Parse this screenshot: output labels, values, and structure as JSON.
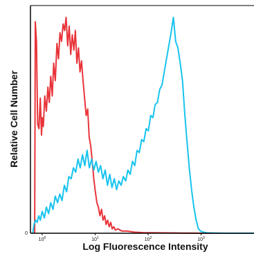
{
  "chart_data": {
    "type": "line",
    "title": "",
    "xlabel": "Log Fluorescence Intensity",
    "ylabel": "Relative Cell Number",
    "x_scale": "log",
    "xlim": [
      0.6,
      10000
    ],
    "ylim": [
      0,
      100
    ],
    "grid": false,
    "x_ticks": [
      {
        "value": 1,
        "base": "10",
        "exp": "0"
      },
      {
        "value": 10,
        "base": "10",
        "exp": "1"
      },
      {
        "value": 100,
        "base": "10",
        "exp": "2"
      },
      {
        "value": 1000,
        "base": "10",
        "exp": "3"
      }
    ],
    "y_ticks": [
      {
        "value": 0,
        "label": "0"
      }
    ],
    "series": [
      {
        "color": "#e8343a",
        "x": [
          0.72,
          0.74,
          0.78,
          0.82,
          0.87,
          0.92,
          0.97,
          1.0,
          1.05,
          1.12,
          1.2,
          1.28,
          1.36,
          1.45,
          1.55,
          1.65,
          1.77,
          1.9,
          2.03,
          2.17,
          2.32,
          2.48,
          2.65,
          2.83,
          3.03,
          3.24,
          3.46,
          3.7,
          3.96,
          4.23,
          4.52,
          4.84,
          5.17,
          5.53,
          5.91,
          6.32,
          6.76,
          7.22,
          7.72,
          8.25,
          8.82,
          9.43,
          10.1,
          10.8,
          11.5,
          12.3,
          13.2,
          14.1,
          15.1,
          16.1,
          17.2,
          18.4,
          19.7,
          21.0,
          22.5,
          24.0,
          27.0,
          32.0,
          40.0,
          55.0,
          80.0,
          150.0,
          400.0,
          1200.0,
          4000.0,
          10000.0
        ],
        "y": [
          0,
          97,
          88,
          50,
          48,
          62,
          45,
          53,
          49,
          63,
          56,
          67,
          60,
          72,
          63,
          78,
          70,
          87,
          80,
          92,
          88,
          96,
          93,
          99,
          86,
          95,
          82,
          91,
          84,
          93,
          78,
          85,
          74,
          79,
          70,
          62,
          54,
          57,
          44,
          40,
          33,
          25,
          19,
          14,
          12,
          8,
          11,
          6,
          8,
          4,
          6,
          3,
          5,
          2,
          3,
          1.5,
          2,
          1,
          1,
          0.5,
          0.3,
          0.2,
          0.1,
          0,
          0,
          0
        ]
      },
      {
        "color": "#17c3ee",
        "x": [
          0.66,
          0.7,
          0.75,
          0.8,
          0.86,
          0.92,
          1.0,
          1.1,
          1.2,
          1.32,
          1.45,
          1.6,
          1.77,
          1.95,
          2.15,
          2.37,
          2.62,
          2.89,
          3.19,
          3.52,
          3.89,
          4.29,
          4.74,
          5.23,
          5.77,
          6.37,
          7.03,
          7.76,
          8.57,
          9.46,
          10.4,
          11.5,
          12.7,
          14.0,
          15.5,
          17.1,
          18.9,
          20.8,
          23.0,
          25.4,
          28.0,
          30.9,
          34.1,
          37.7,
          41.6,
          45.9,
          50.7,
          56.0,
          61.8,
          68.2,
          75.3,
          83.1,
          91.8,
          101.0,
          112.0,
          123.0,
          136.0,
          150.0,
          166.0,
          183.0,
          202.0,
          223.0,
          246.0,
          272.0,
          300.0,
          331.0,
          366.0,
          404.0,
          446.0,
          492.0,
          543.0,
          600.0,
          662.0,
          731.0,
          807.0,
          891.0,
          984.0,
          1100.0,
          1300.0,
          1800.0,
          3000.0,
          6000.0,
          10000.0
        ],
        "y": [
          0,
          4,
          6,
          5,
          8,
          6,
          10,
          7,
          12,
          9,
          14,
          11,
          17,
          14,
          18,
          15,
          22,
          19,
          26,
          25,
          30,
          28,
          34,
          30,
          36,
          31,
          38,
          30,
          34,
          29,
          33,
          28,
          31,
          25,
          29,
          22,
          27,
          21,
          25,
          20,
          24,
          22,
          26,
          24,
          29,
          27,
          33,
          31,
          38,
          37,
          43,
          42,
          48,
          47,
          54,
          53,
          59,
          60,
          66,
          68,
          74,
          80,
          86,
          92,
          99,
          88,
          85,
          78,
          70,
          55,
          42,
          30,
          20,
          12,
          6,
          2,
          1,
          0.5,
          0.2,
          0.1,
          0,
          0,
          0
        ]
      }
    ]
  }
}
